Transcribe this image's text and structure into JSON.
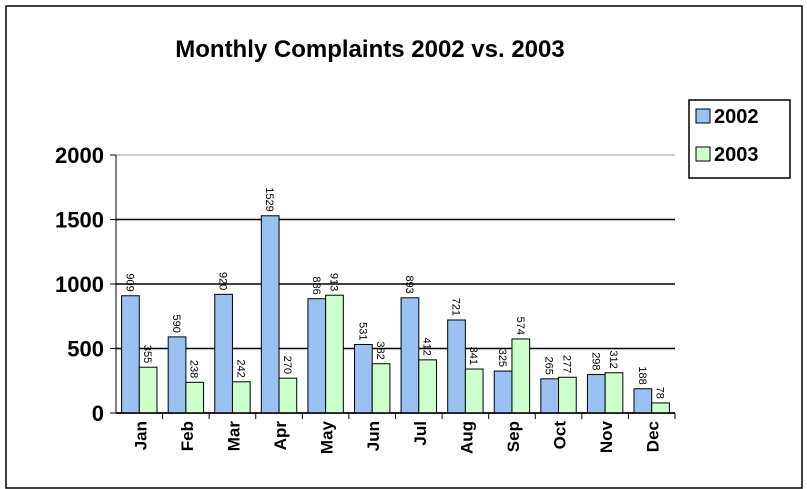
{
  "chart_data": {
    "type": "bar",
    "title": "Monthly Complaints 2002 vs. 2003",
    "categories": [
      "Jan",
      "Feb",
      "Mar",
      "Apr",
      "May",
      "Jun",
      "Jul",
      "Aug",
      "Sep",
      "Oct",
      "Nov",
      "Dec"
    ],
    "series": [
      {
        "name": "2002",
        "color": "#99c2f2",
        "values": [
          909,
          590,
          920,
          1529,
          886,
          531,
          893,
          721,
          325,
          265,
          298,
          188
        ]
      },
      {
        "name": "2003",
        "color": "#ccffcc",
        "values": [
          355,
          238,
          242,
          270,
          913,
          382,
          412,
          341,
          574,
          277,
          312,
          78
        ]
      }
    ],
    "ylim": [
      0,
      2000
    ],
    "yticks": [
      0,
      500,
      1000,
      1500,
      2000
    ],
    "grid": true,
    "legend": "right"
  }
}
